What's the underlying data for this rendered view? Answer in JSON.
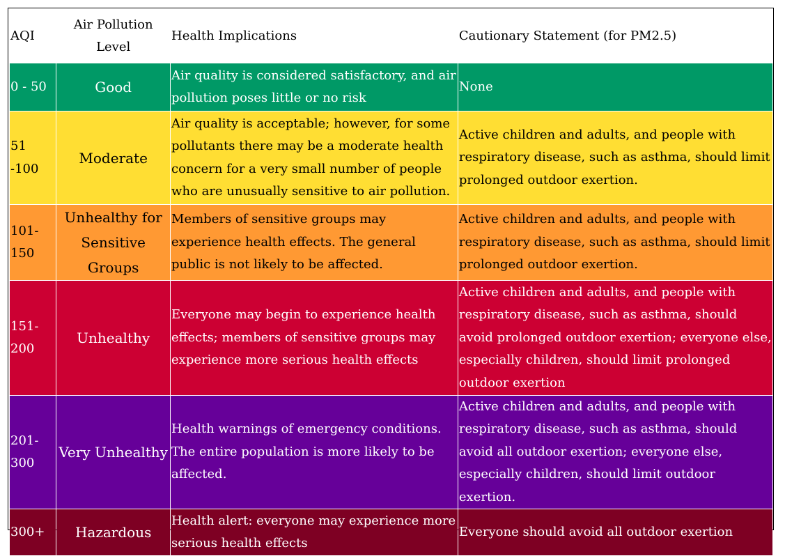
{
  "table": {
    "headers": {
      "aqi": "AQI",
      "level": "Air Pollution Level",
      "health": "Health Implications",
      "caution": "Cautionary Statement (for PM2.5)"
    },
    "rows": [
      {
        "aqi": "0 - 50",
        "level": "Good",
        "health": "Air quality is considered satisfactory, and air pollution poses little or no risk",
        "caution": "None",
        "color": "#009966"
      },
      {
        "aqi": "51 -100",
        "level": "Moderate",
        "health": "Air quality is acceptable; however, for some pollutants there may be a moderate health concern for a very small number of people who are unusually sensitive to air pollution.",
        "caution": "Active children and adults, and people with respiratory disease, such as asthma, should limit prolonged outdoor exertion.",
        "color": "#ffde33"
      },
      {
        "aqi": "101-150",
        "level": "Unhealthy for Sensitive Groups",
        "health": "Members of sensitive groups may experience health effects. The general public is not likely to be affected.",
        "caution": "Active children and adults, and people with respiratory disease, such as asthma, should limit prolonged outdoor exertion.",
        "color": "#ff9933"
      },
      {
        "aqi": "151-200",
        "level": "Unhealthy",
        "health": "Everyone may begin to experience health effects; members of sensitive groups may experience more serious health effects",
        "caution": "Active children and adults, and people with respiratory disease, such as asthma, should avoid prolonged outdoor exertion; everyone else, especially children, should limit prolonged outdoor exertion",
        "color": "#cc0033"
      },
      {
        "aqi": "201-300",
        "level": "Very Unhealthy",
        "health": "Health warnings of emergency conditions. The entire population is more likely to be affected.",
        "caution": "Active children and adults, and people with respiratory disease, such as asthma, should avoid all outdoor exertion; everyone else, especially children, should limit outdoor exertion.",
        "color": "#660099"
      },
      {
        "aqi": "300+",
        "level": "Hazardous",
        "health": "Health alert: everyone may experience more serious health effects",
        "caution": "Everyone should avoid all outdoor exertion",
        "color": "#7e0023"
      }
    ]
  }
}
